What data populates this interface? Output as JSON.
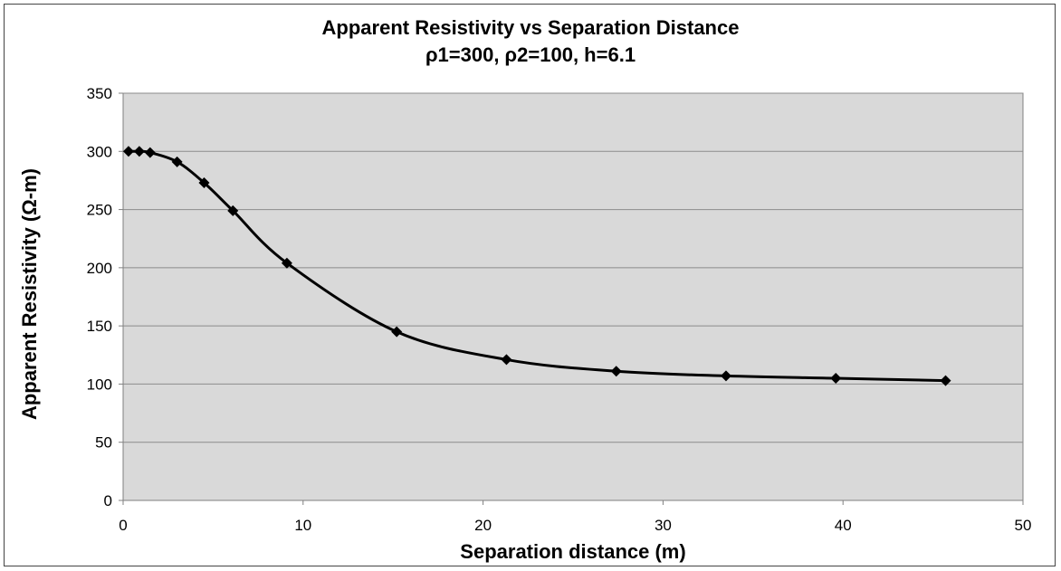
{
  "chart_data": {
    "type": "line",
    "title": "Apparent Resistivity vs Separation Distance",
    "subtitle": "ρ1=300, ρ2=100, h=6.1",
    "xlabel": "Separation distance (m)",
    "ylabel": "Apparent Resistivity (Ω-m)",
    "xlim": [
      0,
      50
    ],
    "ylim": [
      0,
      350
    ],
    "xticks": [
      0,
      10,
      20,
      30,
      40,
      50
    ],
    "yticks": [
      0,
      50,
      100,
      150,
      200,
      250,
      300,
      350
    ],
    "grid": "horizontal",
    "plot_background": "#d9d9d9",
    "line_color": "#000000",
    "marker": "diamond",
    "x": [
      0.3,
      0.9,
      1.5,
      3.0,
      4.5,
      6.1,
      9.1,
      15.2,
      21.3,
      27.4,
      33.5,
      39.6,
      45.7
    ],
    "y": [
      300,
      300,
      299,
      291,
      273,
      249,
      204,
      145,
      121,
      111,
      107,
      105,
      103
    ]
  }
}
